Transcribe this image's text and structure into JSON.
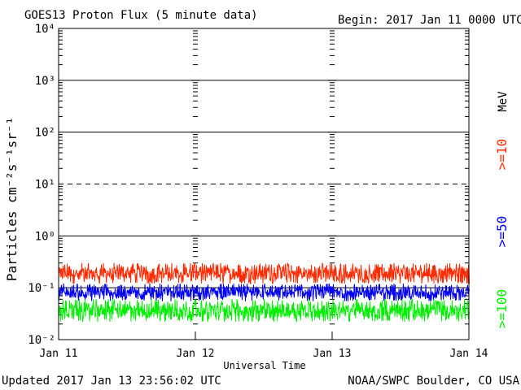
{
  "chart_data": {
    "type": "line",
    "title": "GOES13 Proton Flux (5 minute data)",
    "begin_label": "Begin: 2017 Jan 11 0000 UTC",
    "xlabel": "Universal Time",
    "ylabel": "Particles cm⁻²s⁻¹sr⁻¹",
    "yscale": "log",
    "ylim": [
      0.01,
      10000
    ],
    "y_ticks": [
      {
        "value": 0.01,
        "label": "10⁻²"
      },
      {
        "value": 0.1,
        "label": "10⁻¹"
      },
      {
        "value": 1,
        "label": "10⁰"
      },
      {
        "value": 10,
        "label": "10¹"
      },
      {
        "value": 100,
        "label": "10²"
      },
      {
        "value": 1000,
        "label": "10³"
      },
      {
        "value": 10000,
        "label": "10⁴"
      }
    ],
    "x_ticks": [
      "Jan 11",
      "Jan 12",
      "Jan 13",
      "Jan 14"
    ],
    "threshold_levels": [
      {
        "value": 10,
        "style": "dashed"
      }
    ],
    "grid": true,
    "series": [
      {
        "name": ">=10",
        "color": "#ff2a00",
        "range": [
          0.12,
          0.3
        ]
      },
      {
        "name": ">=50",
        "color": "#0000ee",
        "range": [
          0.055,
          0.12
        ]
      },
      {
        "name": ">=100",
        "color": "#00ee00",
        "range": [
          0.022,
          0.06
        ]
      }
    ],
    "legend_unit": "MeV",
    "legend_position": "right",
    "footer_left": "Updated 2017 Jan 13 23:56:02 UTC",
    "footer_right": "NOAA/SWPC Boulder, CO USA"
  }
}
